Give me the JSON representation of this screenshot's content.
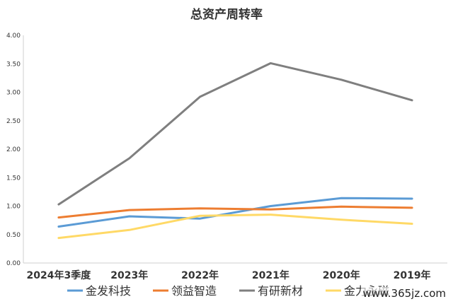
{
  "chart_data": {
    "type": "line",
    "title": "总资产周转率",
    "categories": [
      "2024年3季度",
      "2023年",
      "2022年",
      "2021年",
      "2020年",
      "2019年"
    ],
    "ylim": [
      0,
      4
    ],
    "yticks": [
      "0.00",
      "0.50",
      "1.00",
      "1.50",
      "2.00",
      "2.50",
      "3.00",
      "3.50",
      "4.00"
    ],
    "grid": false,
    "legend_position": "bottom",
    "series": [
      {
        "name": "金发科技",
        "color": "#5B9BD5",
        "values": [
          0.64,
          0.82,
          0.78,
          1.0,
          1.14,
          1.13
        ]
      },
      {
        "name": "领益智造",
        "color": "#ED7D31",
        "values": [
          0.8,
          0.93,
          0.96,
          0.94,
          0.99,
          0.97
        ]
      },
      {
        "name": "有研新材",
        "color": "#7F7F7F",
        "values": [
          1.03,
          1.84,
          2.92,
          3.51,
          3.22,
          2.86
        ]
      },
      {
        "name": "金力永磁",
        "color": "#FFD966",
        "values": [
          0.44,
          0.58,
          0.83,
          0.85,
          0.76,
          0.69
        ]
      }
    ]
  },
  "watermark": "www.365jz.com"
}
